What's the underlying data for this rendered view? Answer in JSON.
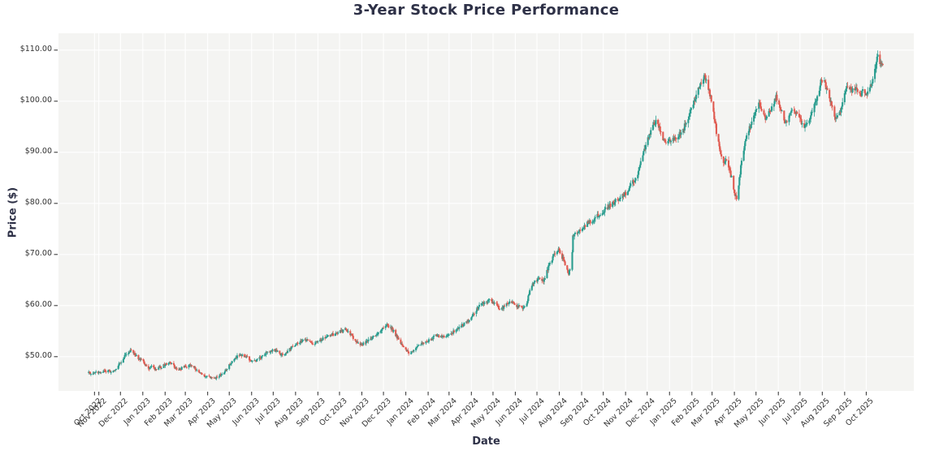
{
  "chart_data": {
    "type": "candlestick",
    "title": "3-Year Stock Price Performance",
    "xlabel": "Date",
    "ylabel": "Price ($)",
    "legend": "none",
    "grid": "on",
    "ylim": [
      43.3,
      113.3
    ],
    "xlim_days": [
      -56,
      1131
    ],
    "start_day": -14,
    "end_day": 1089,
    "epoch_label": "days since Nov 1 2022",
    "summary": {
      "start_price": 46.8,
      "end_price": 106.4,
      "period_high": 109.8,
      "period_low": 45.5
    },
    "colors": {
      "up": "#2a9d8f",
      "down": "#e05a50",
      "plot_bg": "#f4f4f2",
      "grid": "#ffffff",
      "tick_mark": "#3f3f3f",
      "tick_text": "#333333",
      "label_text": "#2e3147",
      "figure_bg": "#ffffff"
    },
    "y_ticks": [
      {
        "label": "$110.00",
        "value": 110
      },
      {
        "label": "$100.00",
        "value": 100
      },
      {
        "label": "$90.00",
        "value": 90
      },
      {
        "label": "$80.00",
        "value": 80
      },
      {
        "label": "$70.00",
        "value": 70
      },
      {
        "label": "$60.00",
        "value": 60
      },
      {
        "label": "$50.00",
        "value": 50
      }
    ],
    "x_ticks": [
      {
        "label": "Oct 2022",
        "day": -6
      },
      {
        "label": "Nov 2022",
        "day": 0
      },
      {
        "label": "Dec 2022",
        "day": 30
      },
      {
        "label": "Jan 2023",
        "day": 61
      },
      {
        "label": "Feb 2023",
        "day": 92
      },
      {
        "label": "Mar 2023",
        "day": 120
      },
      {
        "label": "Apr 2023",
        "day": 151
      },
      {
        "label": "May 2023",
        "day": 181
      },
      {
        "label": "Jun 2023",
        "day": 212
      },
      {
        "label": "Jul 2023",
        "day": 242
      },
      {
        "label": "Aug 2023",
        "day": 273
      },
      {
        "label": "Sep 2023",
        "day": 304
      },
      {
        "label": "Oct 2023",
        "day": 334
      },
      {
        "label": "Nov 2023",
        "day": 365
      },
      {
        "label": "Dec 2023",
        "day": 395
      },
      {
        "label": "Jan 2024",
        "day": 426
      },
      {
        "label": "Feb 2024",
        "day": 457
      },
      {
        "label": "Mar 2024",
        "day": 486
      },
      {
        "label": "Apr 2024",
        "day": 517
      },
      {
        "label": "May 2024",
        "day": 547
      },
      {
        "label": "Jun 2024",
        "day": 578
      },
      {
        "label": "Jul 2024",
        "day": 608
      },
      {
        "label": "Aug 2024",
        "day": 639
      },
      {
        "label": "Sep 2024",
        "day": 670
      },
      {
        "label": "Oct 2024",
        "day": 700
      },
      {
        "label": "Nov 2024",
        "day": 731
      },
      {
        "label": "Dec 2024",
        "day": 761
      },
      {
        "label": "Jan 2025",
        "day": 792
      },
      {
        "label": "Feb 2025",
        "day": 823
      },
      {
        "label": "Mar 2025",
        "day": 851
      },
      {
        "label": "Apr 2025",
        "day": 882
      },
      {
        "label": "May 2025",
        "day": 912
      },
      {
        "label": "Jun 2025",
        "day": 943
      },
      {
        "label": "Jul 2025",
        "day": 973
      },
      {
        "label": "Aug 2025",
        "day": 1004
      },
      {
        "label": "Sep 2025",
        "day": 1035
      },
      {
        "label": "Oct 2025",
        "day": 1065
      }
    ],
    "anchors": [
      [
        0,
        46.8
      ],
      [
        5,
        47.3
      ],
      [
        9,
        46.9
      ],
      [
        14,
        47.2
      ],
      [
        18,
        46.9
      ],
      [
        23,
        47.6
      ],
      [
        27,
        48.3
      ],
      [
        32,
        49.2
      ],
      [
        37,
        50.3
      ],
      [
        41,
        50.9
      ],
      [
        44,
        51.2
      ],
      [
        48,
        50.8
      ],
      [
        52,
        50.2
      ],
      [
        56,
        49.6
      ],
      [
        61,
        49.0
      ],
      [
        65,
        48.3
      ],
      [
        70,
        47.8
      ],
      [
        75,
        48.1
      ],
      [
        79,
        47.4
      ],
      [
        84,
        47.8
      ],
      [
        88,
        48.1
      ],
      [
        91,
        48.4
      ],
      [
        95,
        48.6
      ],
      [
        100,
        48.7
      ],
      [
        105,
        48.0
      ],
      [
        110,
        47.4
      ],
      [
        114,
        47.7
      ],
      [
        119,
        48.0
      ],
      [
        124,
        48.3
      ],
      [
        128,
        48.4
      ],
      [
        133,
        47.7
      ],
      [
        137,
        47.1
      ],
      [
        141,
        46.7
      ],
      [
        146,
        46.3
      ],
      [
        151,
        46.1
      ],
      [
        155,
        46.0
      ],
      [
        160,
        45.9
      ],
      [
        164,
        45.9
      ],
      [
        169,
        46.4
      ],
      [
        174,
        47.1
      ],
      [
        178,
        47.8
      ],
      [
        183,
        48.7
      ],
      [
        188,
        49.4
      ],
      [
        192,
        50.0
      ],
      [
        196,
        50.3
      ],
      [
        199,
        50.4
      ],
      [
        203,
        50.1
      ],
      [
        207,
        49.7
      ],
      [
        211,
        49.3
      ],
      [
        216,
        49.1
      ],
      [
        220,
        49.4
      ],
      [
        225,
        49.9
      ],
      [
        229,
        50.4
      ],
      [
        234,
        50.9
      ],
      [
        239,
        51.2
      ],
      [
        244,
        51.4
      ],
      [
        248,
        50.9
      ],
      [
        253,
        50.3
      ],
      [
        257,
        50.6
      ],
      [
        262,
        51.1
      ],
      [
        266,
        51.6
      ],
      [
        271,
        52.2
      ],
      [
        275,
        52.6
      ],
      [
        280,
        52.9
      ],
      [
        284,
        53.1
      ],
      [
        289,
        53.3
      ],
      [
        293,
        52.9
      ],
      [
        298,
        52.5
      ],
      [
        302,
        52.8
      ],
      [
        307,
        53.2
      ],
      [
        312,
        53.6
      ],
      [
        317,
        53.9
      ],
      [
        321,
        54.1
      ],
      [
        326,
        54.4
      ],
      [
        330,
        54.6
      ],
      [
        335,
        54.9
      ],
      [
        339,
        55.1
      ],
      [
        342,
        55.3
      ],
      [
        346,
        54.8
      ],
      [
        350,
        54.2
      ],
      [
        354,
        53.6
      ],
      [
        358,
        53.0
      ],
      [
        362,
        52.6
      ],
      [
        365,
        52.3
      ],
      [
        370,
        52.7
      ],
      [
        374,
        53.1
      ],
      [
        379,
        53.6
      ],
      [
        384,
        54.2
      ],
      [
        389,
        54.8
      ],
      [
        393,
        55.4
      ],
      [
        397,
        55.9
      ],
      [
        400,
        56.3
      ],
      [
        404,
        55.8
      ],
      [
        408,
        55.2
      ],
      [
        412,
        54.2
      ],
      [
        417,
        53.2
      ],
      [
        421,
        52.3
      ],
      [
        426,
        51.5
      ],
      [
        429,
        51.0
      ],
      [
        432,
        50.7
      ],
      [
        436,
        51.2
      ],
      [
        441,
        51.9
      ],
      [
        445,
        52.3
      ],
      [
        450,
        52.8
      ],
      [
        455,
        53.0
      ],
      [
        460,
        53.3
      ],
      [
        464,
        53.7
      ],
      [
        469,
        54.2
      ],
      [
        473,
        54.0
      ],
      [
        478,
        53.8
      ],
      [
        482,
        54.0
      ],
      [
        487,
        54.3
      ],
      [
        491,
        54.7
      ],
      [
        496,
        55.3
      ],
      [
        500,
        55.7
      ],
      [
        505,
        56.2
      ],
      [
        509,
        56.6
      ],
      [
        514,
        57.1
      ],
      [
        517,
        57.6
      ],
      [
        520,
        58.4
      ],
      [
        524,
        59.2
      ],
      [
        528,
        59.9
      ],
      [
        532,
        60.3
      ],
      [
        536,
        60.6
      ],
      [
        539,
        60.8
      ],
      [
        543,
        61.0
      ],
      [
        547,
        60.7
      ],
      [
        551,
        60.4
      ],
      [
        554,
        59.8
      ],
      [
        558,
        59.3
      ],
      [
        562,
        59.7
      ],
      [
        566,
        60.2
      ],
      [
        570,
        60.6
      ],
      [
        574,
        60.9
      ],
      [
        578,
        60.3
      ],
      [
        581,
        59.8
      ],
      [
        584,
        59.7
      ],
      [
        587,
        59.6
      ],
      [
        590,
        59.8
      ],
      [
        593,
        60.1
      ],
      [
        596,
        61.8
      ],
      [
        600,
        63.9
      ],
      [
        603,
        64.4
      ],
      [
        606,
        64.8
      ],
      [
        609,
        65.2
      ],
      [
        612,
        65.6
      ],
      [
        615,
        65.2
      ],
      [
        617,
        64.9
      ],
      [
        620,
        65.8
      ],
      [
        622,
        66.8
      ],
      [
        625,
        67.8
      ],
      [
        628,
        68.9
      ],
      [
        631,
        69.6
      ],
      [
        634,
        70.3
      ],
      [
        636,
        70.6
      ],
      [
        638,
        70.8
      ],
      [
        641,
        70.1
      ],
      [
        643,
        69.5
      ],
      [
        646,
        68.5
      ],
      [
        648,
        67.6
      ],
      [
        650,
        67.0
      ],
      [
        652,
        66.4
      ],
      [
        654,
        67.0
      ],
      [
        655,
        67.8
      ],
      [
        657,
        70.5
      ],
      [
        658,
        73.4
      ],
      [
        660,
        73.9
      ],
      [
        663,
        74.3
      ],
      [
        666,
        74.8
      ],
      [
        670,
        75.2
      ],
      [
        675,
        75.8
      ],
      [
        680,
        76.3
      ],
      [
        685,
        76.8
      ],
      [
        690,
        77.3
      ],
      [
        695,
        77.9
      ],
      [
        701,
        78.6
      ],
      [
        706,
        79.2
      ],
      [
        712,
        79.8
      ],
      [
        717,
        80.4
      ],
      [
        722,
        81.0
      ],
      [
        727,
        81.5
      ],
      [
        731,
        82.0
      ],
      [
        735,
        82.8
      ],
      [
        739,
        83.6
      ],
      [
        743,
        84.5
      ],
      [
        747,
        85.5
      ],
      [
        750,
        87.0
      ],
      [
        754,
        89.5
      ],
      [
        758,
        91.0
      ],
      [
        761,
        92.5
      ],
      [
        765,
        93.8
      ],
      [
        768,
        95.0
      ],
      [
        771,
        95.6
      ],
      [
        774,
        96.2
      ],
      [
        778,
        94.8
      ],
      [
        781,
        93.5
      ],
      [
        784,
        92.5
      ],
      [
        787,
        91.6
      ],
      [
        791,
        92.0
      ],
      [
        795,
        92.4
      ],
      [
        799,
        92.8
      ],
      [
        803,
        93.2
      ],
      [
        807,
        93.6
      ],
      [
        810,
        93.9
      ],
      [
        813,
        95.2
      ],
      [
        817,
        96.5
      ],
      [
        820,
        97.7
      ],
      [
        824,
        99.0
      ],
      [
        828,
        100.4
      ],
      [
        831,
        101.8
      ],
      [
        834,
        102.8
      ],
      [
        837,
        103.8
      ],
      [
        839,
        104.4
      ],
      [
        841,
        105.0
      ],
      [
        844,
        103.5
      ],
      [
        847,
        102.0
      ],
      [
        850,
        100.2
      ],
      [
        852,
        98.5
      ],
      [
        855,
        96.2
      ],
      [
        857,
        94.0
      ],
      [
        860,
        92.0
      ],
      [
        862,
        90.0
      ],
      [
        864,
        88.9
      ],
      [
        866,
        87.8
      ],
      [
        868,
        88.3
      ],
      [
        870,
        88.8
      ],
      [
        872,
        87.9
      ],
      [
        874,
        87.0
      ],
      [
        876,
        86.0
      ],
      [
        878,
        85.0
      ],
      [
        880,
        83.0
      ],
      [
        883,
        81.5
      ],
      [
        885,
        80.8
      ],
      [
        887,
        82.8
      ],
      [
        889,
        85.0
      ],
      [
        891,
        87.0
      ],
      [
        893,
        89.0
      ],
      [
        895,
        90.5
      ],
      [
        897,
        92.0
      ],
      [
        900,
        93.3
      ],
      [
        902,
        94.5
      ],
      [
        905,
        95.5
      ],
      [
        907,
        96.5
      ],
      [
        910,
        97.5
      ],
      [
        912,
        98.5
      ],
      [
        914,
        99.2
      ],
      [
        916,
        99.7
      ],
      [
        919,
        98.7
      ],
      [
        921,
        97.8
      ],
      [
        924,
        97.1
      ],
      [
        926,
        96.6
      ],
      [
        929,
        97.3
      ],
      [
        931,
        98.0
      ],
      [
        934,
        98.8
      ],
      [
        936,
        99.5
      ],
      [
        938,
        100.3
      ],
      [
        940,
        101.0
      ],
      [
        943,
        100.0
      ],
      [
        945,
        99.0
      ],
      [
        948,
        97.8
      ],
      [
        950,
        96.8
      ],
      [
        953,
        95.4
      ],
      [
        956,
        96.0
      ],
      [
        958,
        96.8
      ],
      [
        961,
        97.7
      ],
      [
        964,
        98.4
      ],
      [
        967,
        97.8
      ],
      [
        969,
        97.2
      ],
      [
        972,
        96.5
      ],
      [
        974,
        96.0
      ],
      [
        977,
        95.6
      ],
      [
        979,
        95.3
      ],
      [
        982,
        95.4
      ],
      [
        984,
        95.6
      ],
      [
        987,
        96.5
      ],
      [
        989,
        97.5
      ],
      [
        992,
        98.5
      ],
      [
        994,
        99.5
      ],
      [
        997,
        100.8
      ],
      [
        999,
        101.8
      ],
      [
        1002,
        104.0
      ],
      [
        1005,
        103.8
      ],
      [
        1007,
        103.5
      ],
      [
        1010,
        102.5
      ],
      [
        1012,
        101.5
      ],
      [
        1015,
        100.2
      ],
      [
        1017,
        99.0
      ],
      [
        1020,
        97.6
      ],
      [
        1022,
        96.3
      ],
      [
        1025,
        96.9
      ],
      [
        1027,
        97.5
      ],
      [
        1030,
        98.8
      ],
      [
        1032,
        100.0
      ],
      [
        1034,
        101.3
      ],
      [
        1036,
        102.5
      ],
      [
        1038,
        102.9
      ],
      [
        1040,
        103.3
      ],
      [
        1043,
        102.6
      ],
      [
        1045,
        102.0
      ],
      [
        1048,
        102.3
      ],
      [
        1050,
        102.5
      ],
      [
        1053,
        101.7
      ],
      [
        1055,
        101.0
      ],
      [
        1058,
        101.4
      ],
      [
        1060,
        101.8
      ],
      [
        1062,
        101.6
      ],
      [
        1064,
        101.4
      ],
      [
        1066,
        101.7
      ],
      [
        1068,
        102.0
      ],
      [
        1070,
        102.5
      ],
      [
        1072,
        103.0
      ],
      [
        1074,
        104.2
      ],
      [
        1076,
        105.5
      ],
      [
        1078,
        106.5
      ],
      [
        1079,
        107.5
      ],
      [
        1080,
        108.2
      ],
      [
        1081,
        108.8
      ],
      [
        1083,
        108.3
      ],
      [
        1084,
        107.8
      ],
      [
        1086,
        107.1
      ],
      [
        1087,
        106.8
      ],
      [
        1089,
        106.4
      ]
    ]
  }
}
